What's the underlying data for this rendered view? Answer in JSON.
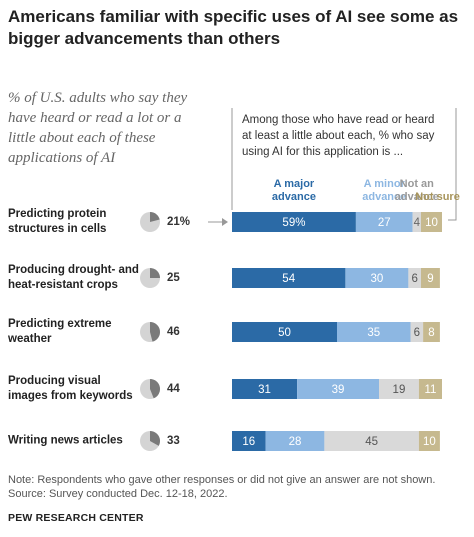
{
  "chart_data": {
    "type": "bar",
    "title": "Americans familiar with specific uses of AI see some as bigger advancements than others",
    "subtitle": "% of U.S. adults who say they have heard or read a lot or a little about each of these applications of AI",
    "header": "Among those who have read or heard at least a little about each, % who say using AI for this application is ...",
    "categories": [
      "Predicting protein structures in cells",
      "Producing drought- and heat-resistant crops",
      "Predicting extreme weather",
      "Producing visual images from keywords",
      "Writing news articles"
    ],
    "familiar": {
      "values": [
        21,
        25,
        46,
        44,
        33
      ],
      "value_labels": [
        "21%",
        "25",
        "46",
        "44",
        "33"
      ],
      "color": "#7a7a7a",
      "background": "#d4d4d4"
    },
    "series": [
      {
        "name": "A major advance",
        "color": "#2b6aa6",
        "values": [
          59,
          54,
          50,
          31,
          16
        ],
        "value_labels": [
          "59%",
          "54",
          "50",
          "31",
          "16"
        ]
      },
      {
        "name": "A minor advance",
        "color": "#8db7e2",
        "values": [
          27,
          30,
          35,
          39,
          28
        ]
      },
      {
        "name": "Not an advance",
        "color": "#d9d9d9",
        "values": [
          4,
          6,
          6,
          19,
          45
        ]
      },
      {
        "name": "Not sure",
        "color": "#c6b98f",
        "values": [
          10,
          9,
          8,
          11,
          10
        ]
      }
    ],
    "note": "Note: Respondents who gave other responses or did not give an answer are not shown.",
    "source": "Source: Survey conducted Dec. 12-18, 2022.",
    "org": "PEW RESEARCH CENTER"
  }
}
